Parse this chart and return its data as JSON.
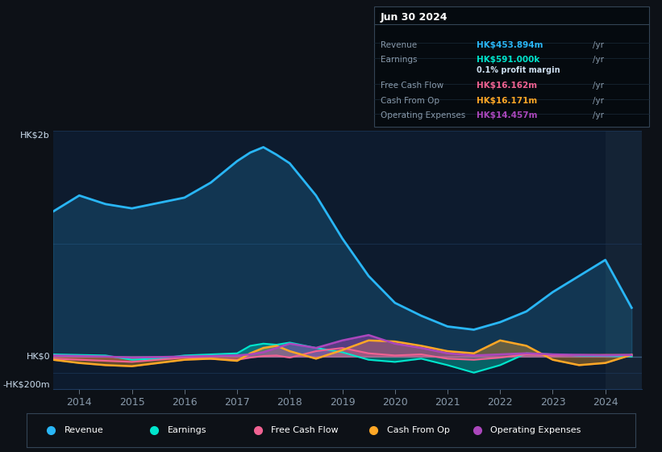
{
  "background_color": "#0d1117",
  "plot_bg_color": "#0d1b2e",
  "grid_color": "#1e3a5f",
  "years": [
    2013.5,
    2014.0,
    2014.5,
    2015.0,
    2015.5,
    2016.0,
    2016.5,
    2017.0,
    2017.25,
    2017.5,
    2017.75,
    2018.0,
    2018.5,
    2019.0,
    2019.5,
    2020.0,
    2020.5,
    2021.0,
    2021.5,
    2022.0,
    2022.5,
    2023.0,
    2023.5,
    2024.0,
    2024.5
  ],
  "revenue": [
    1350,
    1500,
    1420,
    1380,
    1430,
    1480,
    1620,
    1820,
    1900,
    1950,
    1880,
    1800,
    1500,
    1100,
    750,
    500,
    380,
    280,
    250,
    320,
    420,
    600,
    750,
    900,
    454
  ],
  "earnings": [
    20,
    15,
    10,
    -30,
    -20,
    10,
    20,
    30,
    100,
    120,
    110,
    130,
    80,
    40,
    -30,
    -50,
    -20,
    -80,
    -150,
    -80,
    30,
    20,
    10,
    5,
    0.6
  ],
  "free_cash_flow": [
    -20,
    -30,
    -40,
    -50,
    -30,
    -10,
    -20,
    -30,
    -10,
    5,
    10,
    -10,
    50,
    80,
    30,
    10,
    20,
    -20,
    -30,
    -10,
    20,
    10,
    15,
    16,
    16
  ],
  "cash_from_op": [
    -30,
    -60,
    -80,
    -90,
    -60,
    -30,
    -20,
    -40,
    30,
    80,
    100,
    50,
    -20,
    60,
    150,
    140,
    100,
    50,
    30,
    150,
    100,
    -30,
    -80,
    -60,
    16
  ],
  "operating_expenses": [
    10,
    5,
    0,
    -10,
    -5,
    0,
    5,
    10,
    20,
    40,
    80,
    120,
    80,
    150,
    200,
    120,
    80,
    30,
    10,
    20,
    30,
    20,
    15,
    10,
    14
  ],
  "revenue_color": "#29b6f6",
  "earnings_color": "#00e5cc",
  "free_cash_flow_color": "#f06292",
  "cash_from_op_color": "#ffa726",
  "operating_expenses_color": "#ab47bc",
  "info_box": {
    "title": "Jun 30 2024",
    "rows": [
      {
        "label": "Revenue",
        "value": "HK$453.894m",
        "color": "#29b6f6",
        "extra": null
      },
      {
        "label": "Earnings",
        "value": "HK$591.000k",
        "color": "#00e5cc",
        "extra": "0.1% profit margin"
      },
      {
        "label": "Free Cash Flow",
        "value": "HK$16.162m",
        "color": "#f06292",
        "extra": null
      },
      {
        "label": "Cash From Op",
        "value": "HK$16.171m",
        "color": "#ffa726",
        "extra": null
      },
      {
        "label": "Operating Expenses",
        "value": "HK$14.457m",
        "color": "#ab47bc",
        "extra": null
      }
    ]
  },
  "legend_items": [
    "Revenue",
    "Earnings",
    "Free Cash Flow",
    "Cash From Op",
    "Operating Expenses"
  ],
  "legend_colors": [
    "#29b6f6",
    "#00e5cc",
    "#f06292",
    "#ffa726",
    "#ab47bc"
  ],
  "xlim": [
    2013.5,
    2024.7
  ],
  "ylim": [
    -300,
    2100
  ],
  "xticks": [
    2014,
    2015,
    2016,
    2017,
    2018,
    2019,
    2020,
    2021,
    2022,
    2023,
    2024
  ],
  "shade_right_x": 2024.0
}
